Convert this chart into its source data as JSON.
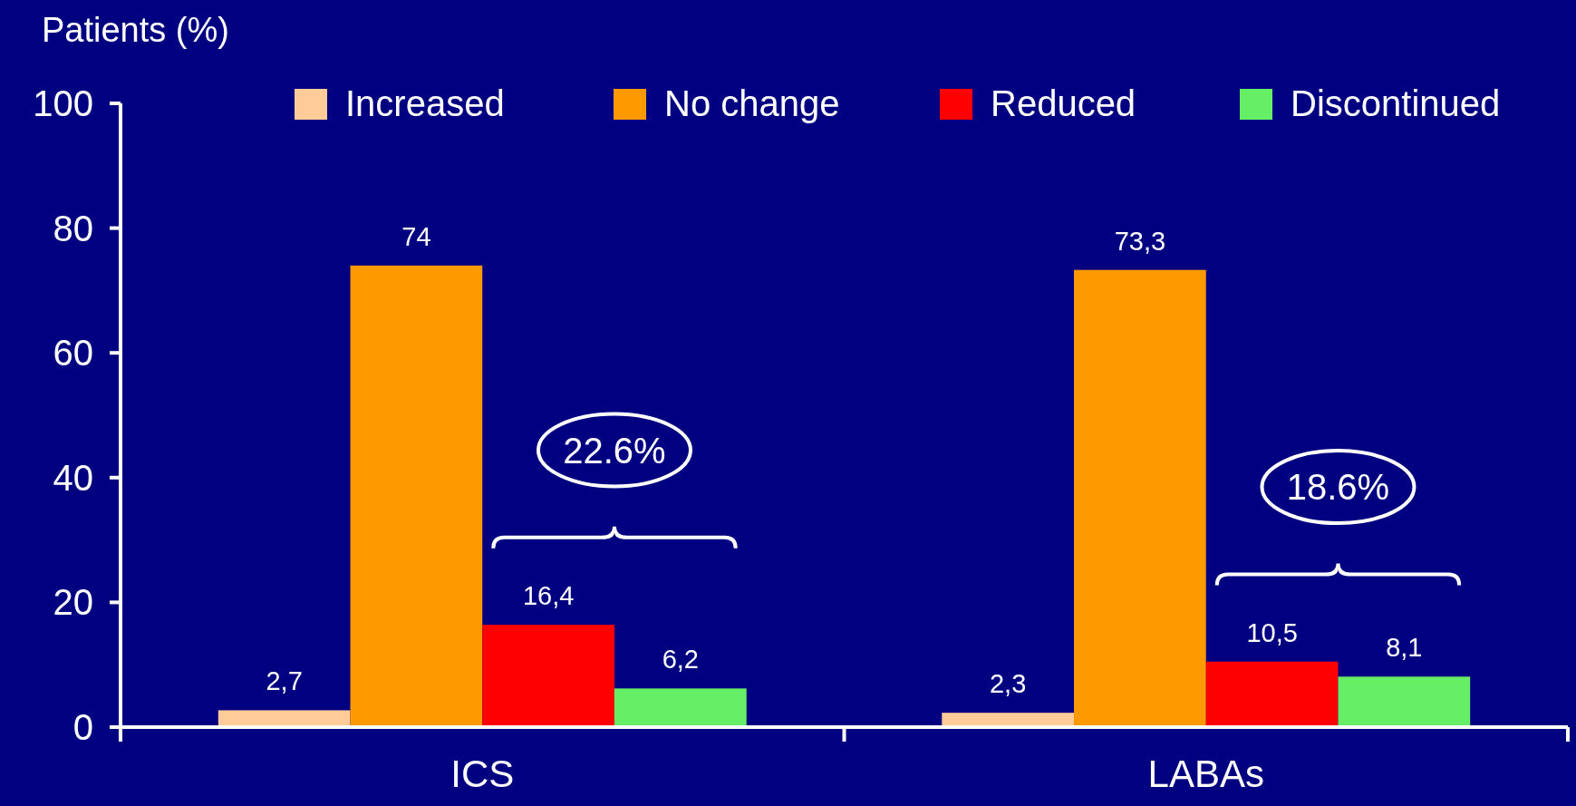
{
  "chart_data": {
    "type": "bar",
    "ylabel": "Patients (%)",
    "categories": [
      "ICS",
      "LABAs"
    ],
    "series": [
      {
        "name": "Increased",
        "color": "#ffcc99",
        "values": [
          2.7,
          2.3
        ],
        "value_labels": [
          "2,7",
          "2,3"
        ]
      },
      {
        "name": "No change",
        "color": "#ff9900",
        "values": [
          74,
          73.3
        ],
        "value_labels": [
          "74",
          "73,3"
        ]
      },
      {
        "name": "Reduced",
        "color": "#ff0000",
        "values": [
          16.4,
          10.5
        ],
        "value_labels": [
          "16,4",
          "10,5"
        ]
      },
      {
        "name": "Discontinued",
        "color": "#66ee66",
        "values": [
          6.2,
          8.1
        ],
        "value_labels": [
          "6,2",
          "8,1"
        ]
      }
    ],
    "ylim": [
      0,
      100
    ],
    "yticks": [
      0,
      20,
      40,
      60,
      80,
      100
    ],
    "grid": false,
    "legend": "top",
    "annotations": [
      "22.6%",
      "18.6%"
    ]
  }
}
